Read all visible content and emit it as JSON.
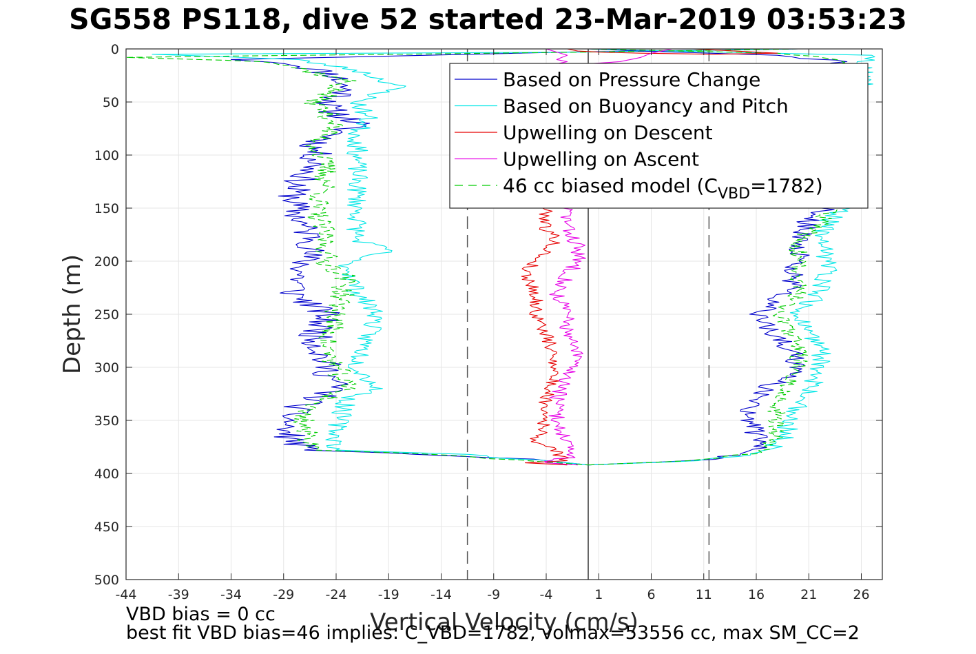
{
  "chart_data": {
    "type": "line",
    "title": "SG558 PS118, dive 52 started 23-Mar-2019 03:53:23",
    "xlabel": "Vertical Velocity (cm/s)",
    "ylabel": "Depth (m)",
    "xlim": [
      -44,
      28
    ],
    "ylim": [
      500,
      0
    ],
    "y_reversed": true,
    "grid": true,
    "xticks": [
      -44,
      -39,
      -34,
      -29,
      -24,
      -19,
      -14,
      -9,
      -4,
      1,
      6,
      11,
      16,
      21,
      26
    ],
    "yticks": [
      0,
      50,
      100,
      150,
      200,
      250,
      300,
      350,
      400,
      450,
      500
    ],
    "reference_lines": [
      {
        "x": 0,
        "style": "solid",
        "color": "#000000"
      },
      {
        "x": -11.5,
        "style": "dashed",
        "color": "#555555"
      },
      {
        "x": 11.5,
        "style": "dashed",
        "color": "#555555"
      }
    ],
    "legend_position": "top-right",
    "legend": [
      {
        "name": "Based on Pressure Change",
        "color": "#0000cc",
        "dash": "solid"
      },
      {
        "name": "Based on Buoyancy and Pitch",
        "color": "#00e6e6",
        "dash": "solid"
      },
      {
        "name": "Upwelling on Descent",
        "color": "#e60000",
        "dash": "solid"
      },
      {
        "name": "Upwelling on Ascent",
        "color": "#e600e6",
        "dash": "solid"
      },
      {
        "name": "46 cc biased model (C",
        "sub": "VBD",
        "name_suffix": "=1782)",
        "color": "#00cc00",
        "dash": "dashed"
      }
    ],
    "series": [
      {
        "id": "pressure-descent",
        "legend": 0,
        "color": "#0000cc",
        "dash": "solid",
        "noise": 1.6,
        "seed": 11,
        "profile": [
          [
            0,
            20
          ],
          [
            3,
            -2
          ],
          [
            7,
            -20
          ],
          [
            10,
            -34
          ],
          [
            14,
            -28
          ],
          [
            25,
            -24
          ],
          [
            40,
            -23
          ],
          [
            55,
            -25
          ],
          [
            70,
            -22
          ],
          [
            90,
            -26
          ],
          [
            110,
            -26
          ],
          [
            130,
            -28
          ],
          [
            150,
            -28
          ],
          [
            170,
            -27
          ],
          [
            180,
            -26
          ],
          [
            200,
            -27
          ],
          [
            230,
            -28
          ],
          [
            250,
            -25
          ],
          [
            270,
            -26
          ],
          [
            300,
            -25
          ],
          [
            320,
            -24
          ],
          [
            340,
            -28
          ],
          [
            360,
            -29
          ],
          [
            378,
            -27
          ],
          [
            382,
            -15
          ],
          [
            388,
            -4
          ],
          [
            392,
            0
          ]
        ]
      },
      {
        "id": "buoyancy-descent",
        "legend": 1,
        "color": "#00e6e6",
        "dash": "solid",
        "noise": 1.0,
        "seed": 23,
        "profile": [
          [
            0,
            20
          ],
          [
            3,
            0
          ],
          [
            5,
            -41
          ],
          [
            10,
            -28
          ],
          [
            20,
            -22
          ],
          [
            35,
            -18
          ],
          [
            50,
            -22
          ],
          [
            65,
            -21
          ],
          [
            80,
            -22
          ],
          [
            100,
            -22
          ],
          [
            120,
            -22
          ],
          [
            150,
            -22
          ],
          [
            180,
            -22
          ],
          [
            190,
            -19
          ],
          [
            200,
            -23
          ],
          [
            230,
            -22
          ],
          [
            250,
            -20
          ],
          [
            270,
            -21
          ],
          [
            300,
            -22
          ],
          [
            320,
            -20
          ],
          [
            330,
            -23
          ],
          [
            360,
            -24
          ],
          [
            378,
            -24
          ],
          [
            382,
            -12
          ],
          [
            390,
            -2
          ],
          [
            392,
            0
          ]
        ]
      },
      {
        "id": "model-descent",
        "legend": 4,
        "color": "#00cc00",
        "dash": "dashed",
        "noise": 1.2,
        "seed": 37,
        "profile": [
          [
            0,
            20
          ],
          [
            3,
            0
          ],
          [
            8,
            -44
          ],
          [
            12,
            -30
          ],
          [
            30,
            -23
          ],
          [
            50,
            -26
          ],
          [
            70,
            -24
          ],
          [
            90,
            -26
          ],
          [
            110,
            -25
          ],
          [
            130,
            -25
          ],
          [
            150,
            -26
          ],
          [
            180,
            -25
          ],
          [
            200,
            -25
          ],
          [
            215,
            -23
          ],
          [
            250,
            -24
          ],
          [
            280,
            -25
          ],
          [
            300,
            -24
          ],
          [
            320,
            -23
          ],
          [
            340,
            -27
          ],
          [
            360,
            -27
          ],
          [
            378,
            -26
          ],
          [
            382,
            -14
          ],
          [
            390,
            -3
          ],
          [
            392,
            0
          ]
        ]
      },
      {
        "id": "pressure-ascent",
        "legend": 0,
        "color": "#0000cc",
        "dash": "solid",
        "noise": 1.1,
        "seed": 41,
        "profile": [
          [
            392,
            0
          ],
          [
            388,
            10
          ],
          [
            380,
            16
          ],
          [
            360,
            16
          ],
          [
            340,
            15
          ],
          [
            320,
            17
          ],
          [
            300,
            20
          ],
          [
            280,
            19
          ],
          [
            250,
            16
          ],
          [
            230,
            19
          ],
          [
            200,
            20
          ],
          [
            180,
            20
          ],
          [
            160,
            21
          ],
          [
            150,
            23
          ],
          [
            130,
            24
          ],
          [
            100,
            24
          ],
          [
            60,
            24
          ],
          [
            30,
            25
          ],
          [
            12,
            24
          ],
          [
            6,
            18
          ],
          [
            2,
            5
          ],
          [
            0,
            0
          ]
        ]
      },
      {
        "id": "buoyancy-ascent",
        "legend": 1,
        "color": "#00e6e6",
        "dash": "solid",
        "noise": 1.1,
        "seed": 53,
        "profile": [
          [
            392,
            0
          ],
          [
            388,
            11
          ],
          [
            380,
            17
          ],
          [
            365,
            19
          ],
          [
            350,
            19
          ],
          [
            330,
            21
          ],
          [
            300,
            22
          ],
          [
            280,
            22
          ],
          [
            250,
            20
          ],
          [
            230,
            22
          ],
          [
            200,
            23
          ],
          [
            180,
            22
          ],
          [
            160,
            23
          ],
          [
            150,
            24
          ],
          [
            120,
            25
          ],
          [
            80,
            25
          ],
          [
            40,
            26
          ],
          [
            15,
            26
          ],
          [
            6,
            27
          ],
          [
            2,
            8
          ],
          [
            0,
            0
          ]
        ]
      },
      {
        "id": "model-ascent",
        "legend": 4,
        "color": "#00cc00",
        "dash": "dashed",
        "noise": 0.9,
        "seed": 67,
        "profile": [
          [
            392,
            0
          ],
          [
            388,
            10
          ],
          [
            380,
            17
          ],
          [
            360,
            18
          ],
          [
            340,
            18
          ],
          [
            320,
            19
          ],
          [
            300,
            20
          ],
          [
            280,
            20
          ],
          [
            250,
            18
          ],
          [
            230,
            20
          ],
          [
            200,
            20
          ],
          [
            180,
            20
          ],
          [
            165,
            22
          ],
          [
            150,
            23
          ],
          [
            120,
            24
          ],
          [
            80,
            24
          ],
          [
            40,
            25
          ],
          [
            10,
            24
          ],
          [
            4,
            18
          ],
          [
            0,
            0
          ]
        ]
      },
      {
        "id": "upwelling-descent",
        "legend": 2,
        "color": "#e60000",
        "dash": "solid",
        "noise": 0.7,
        "seed": 79,
        "profile": [
          [
            150,
            -4
          ],
          [
            170,
            -4
          ],
          [
            180,
            -3
          ],
          [
            190,
            -4
          ],
          [
            210,
            -6
          ],
          [
            230,
            -5
          ],
          [
            250,
            -5
          ],
          [
            270,
            -4
          ],
          [
            300,
            -3
          ],
          [
            330,
            -4
          ],
          [
            350,
            -4
          ],
          [
            370,
            -5
          ],
          [
            380,
            -3
          ],
          [
            388,
            -2
          ],
          [
            390,
            -6
          ],
          [
            392,
            -2
          ]
        ]
      },
      {
        "id": "upwelling-ascent",
        "legend": 3,
        "color": "#e600e6",
        "dash": "solid",
        "noise": 0.8,
        "seed": 83,
        "profile": [
          [
            150,
            -2
          ],
          [
            170,
            -2
          ],
          [
            185,
            -1
          ],
          [
            200,
            -1
          ],
          [
            215,
            -2
          ],
          [
            230,
            -3
          ],
          [
            250,
            -2
          ],
          [
            270,
            -2
          ],
          [
            290,
            -1
          ],
          [
            310,
            -2
          ],
          [
            330,
            -3
          ],
          [
            350,
            -3
          ],
          [
            370,
            -2
          ],
          [
            385,
            -2
          ],
          [
            390,
            -4
          ],
          [
            392,
            -1
          ]
        ]
      },
      {
        "id": "upwelling-descent-surface",
        "legend": 2,
        "color": "#e60000",
        "dash": "solid",
        "noise": 0,
        "seed": 91,
        "profile": [
          [
            0,
            -2
          ],
          [
            2,
            -1
          ],
          [
            3,
            1
          ],
          [
            4,
            5
          ],
          [
            5,
            12
          ],
          [
            4,
            18
          ],
          [
            2,
            14
          ],
          [
            0,
            10
          ]
        ]
      },
      {
        "id": "upwelling-ascent-surface",
        "legend": 3,
        "color": "#e600e6",
        "dash": "solid",
        "noise": 0.4,
        "seed": 97,
        "profile": [
          [
            0,
            -4
          ],
          [
            3,
            -3
          ],
          [
            6,
            -2
          ],
          [
            10,
            -3
          ],
          [
            12,
            -2
          ],
          [
            14,
            -3
          ],
          [
            15,
            -2
          ],
          [
            14,
            0
          ],
          [
            12,
            3
          ],
          [
            8,
            5
          ],
          [
            4,
            6
          ],
          [
            0,
            8
          ]
        ]
      }
    ]
  },
  "annotations": {
    "vbd_bias": "VBD bias = 0 cc",
    "best_fit": "best fit VBD bias=46 implies: C_VBD=1782, volmax=53556 cc, max SM_CC=2"
  }
}
